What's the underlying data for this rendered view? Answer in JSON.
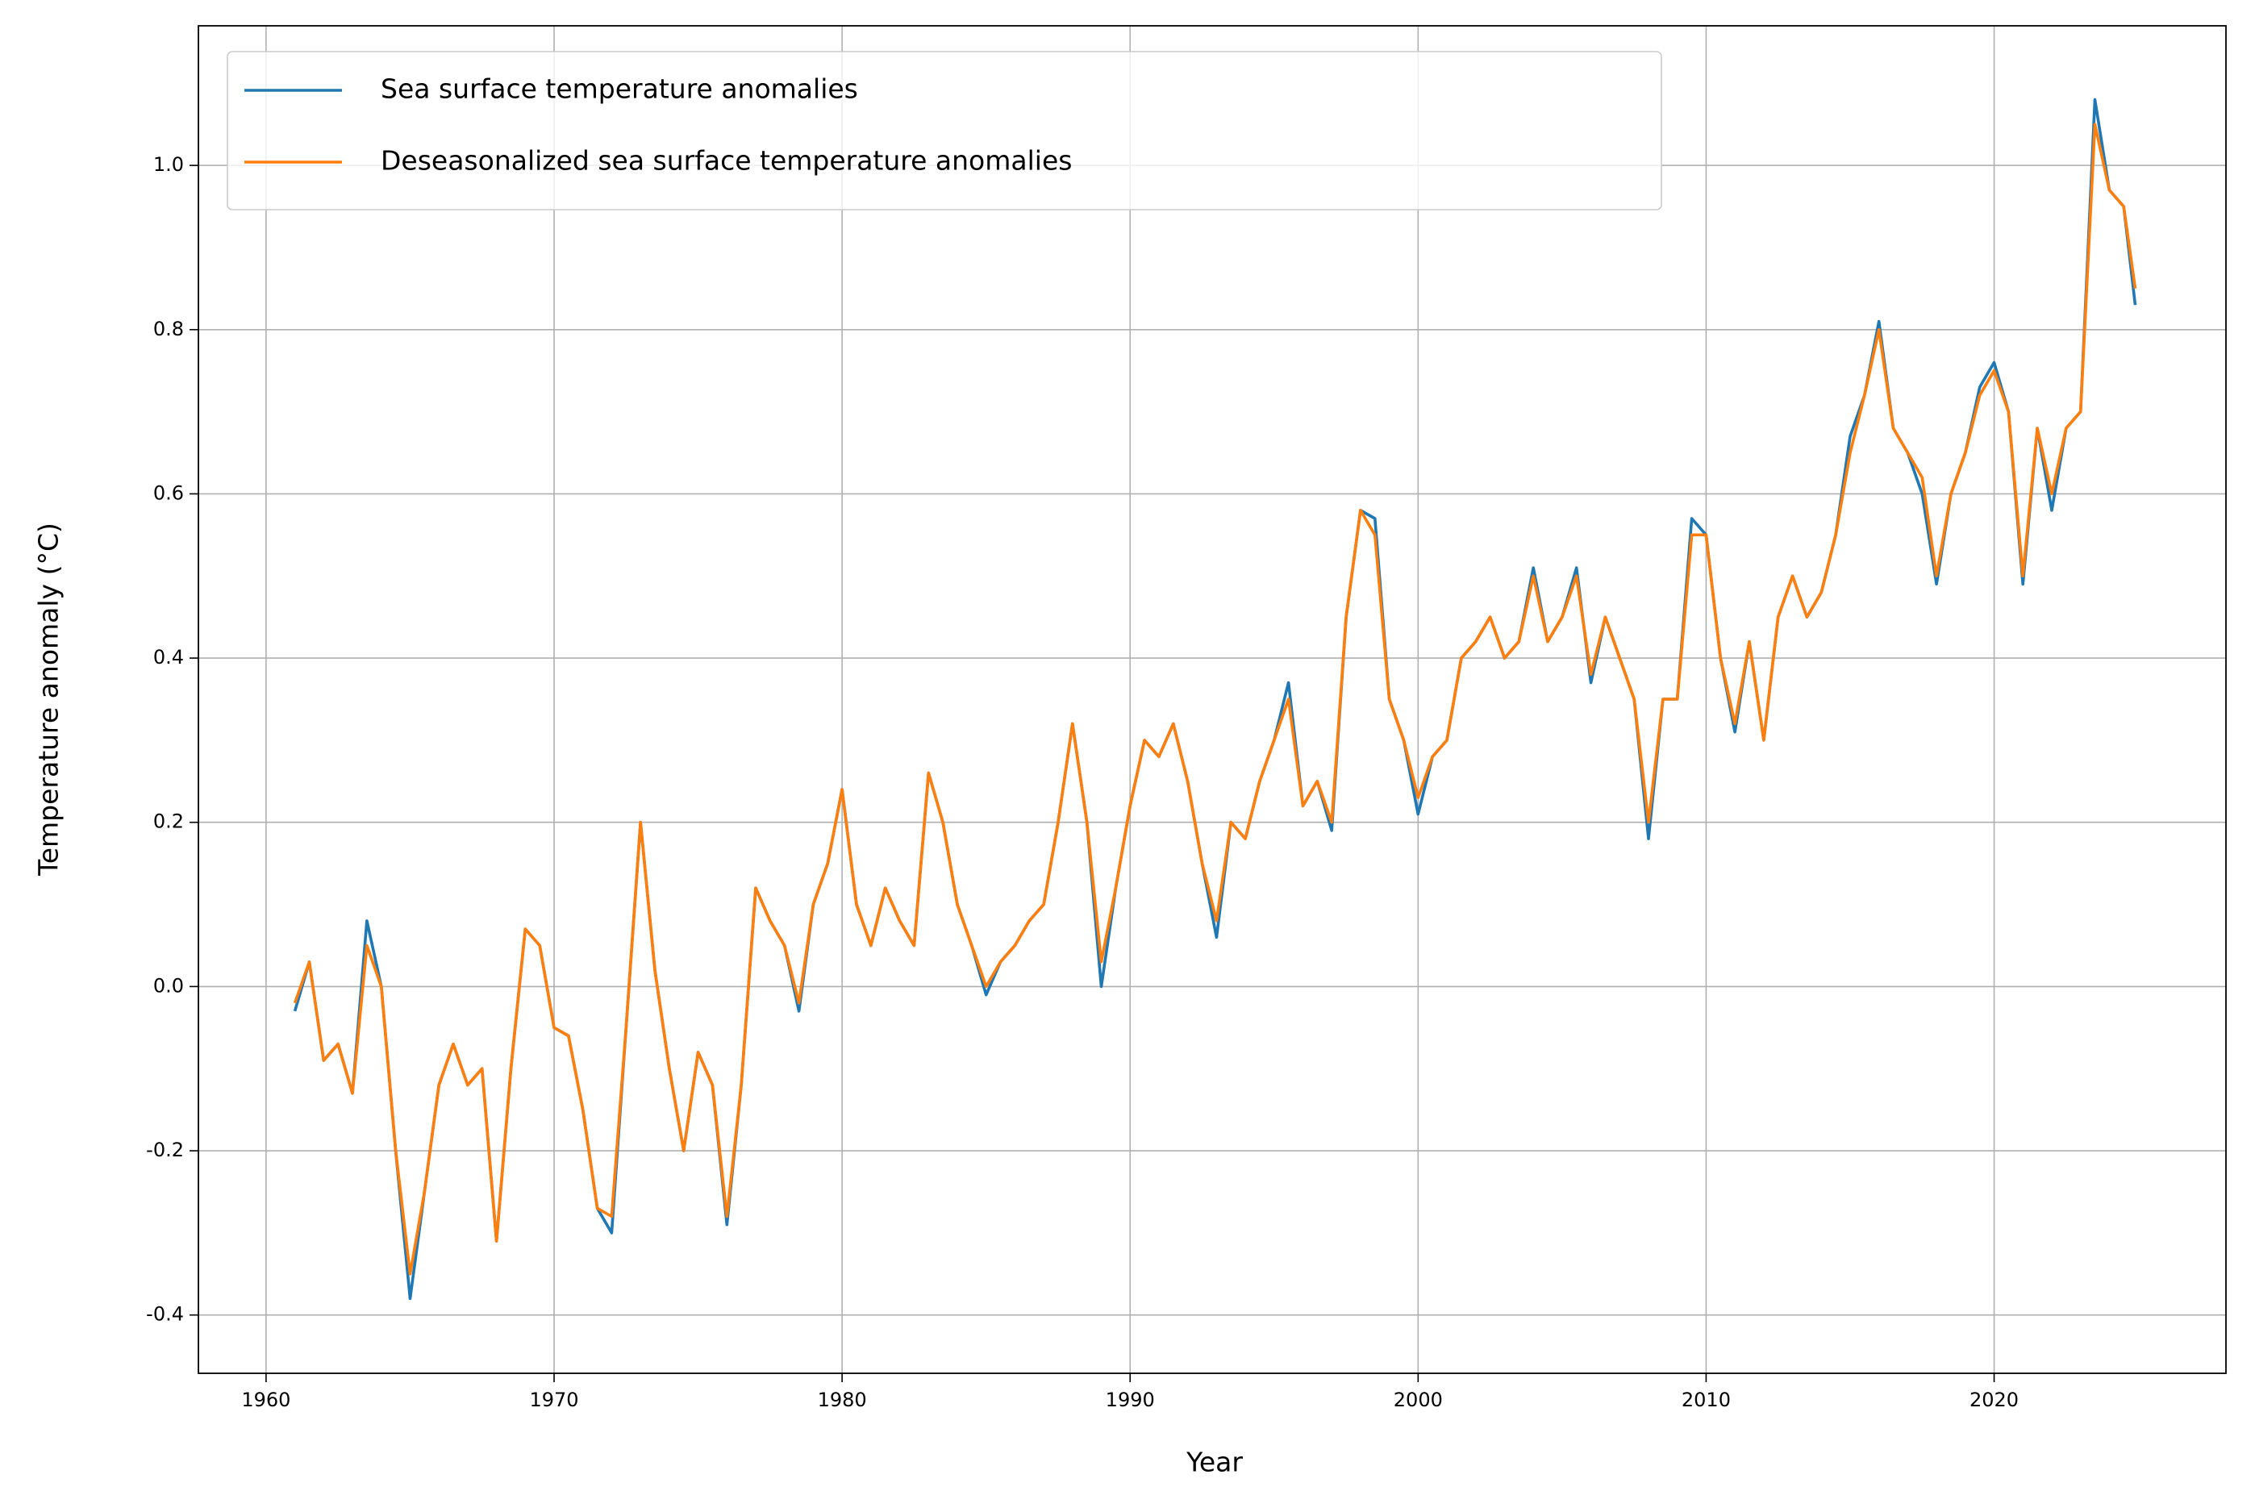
{
  "chart_data": {
    "type": "line",
    "xlabel": "Year",
    "ylabel": "Temperature anomaly (°C)",
    "x": [
      1961.0,
      1961.5,
      1962.0,
      1962.5,
      1963.0,
      1963.5,
      1964.0,
      1964.5,
      1965.0,
      1965.5,
      1966.0,
      1966.5,
      1967.0,
      1967.5,
      1968.0,
      1968.5,
      1969.0,
      1969.5,
      1970.0,
      1970.5,
      1971.0,
      1971.5,
      1972.0,
      1972.5,
      1973.0,
      1973.5,
      1974.0,
      1974.5,
      1975.0,
      1975.5,
      1976.0,
      1976.5,
      1977.0,
      1977.5,
      1978.0,
      1978.5,
      1979.0,
      1979.5,
      1980.0,
      1980.5,
      1981.0,
      1981.5,
      1982.0,
      1982.5,
      1983.0,
      1983.5,
      1984.0,
      1984.5,
      1985.0,
      1985.5,
      1986.0,
      1986.5,
      1987.0,
      1987.5,
      1988.0,
      1988.5,
      1989.0,
      1989.5,
      1990.0,
      1990.5,
      1991.0,
      1991.5,
      1992.0,
      1992.5,
      1993.0,
      1993.5,
      1994.0,
      1994.5,
      1995.0,
      1995.5,
      1996.0,
      1996.5,
      1997.0,
      1997.5,
      1998.0,
      1998.5,
      1999.0,
      1999.5,
      2000.0,
      2000.5,
      2001.0,
      2001.5,
      2002.0,
      2002.5,
      2003.0,
      2003.5,
      2004.0,
      2004.5,
      2005.0,
      2005.5,
      2006.0,
      2006.5,
      2007.0,
      2007.5,
      2008.0,
      2008.5,
      2009.0,
      2009.5,
      2010.0,
      2010.5,
      2011.0,
      2011.5,
      2012.0,
      2012.5,
      2013.0,
      2013.5,
      2014.0,
      2014.5,
      2015.0,
      2015.5,
      2016.0,
      2016.5,
      2017.0,
      2017.5,
      2018.0,
      2018.5,
      2019.0,
      2019.5,
      2020.0,
      2020.5,
      2021.0,
      2021.5,
      2022.0,
      2022.5,
      2023.0,
      2023.5,
      2024.0,
      2024.5,
      2024.9
    ],
    "series": [
      {
        "name": "Sea surface temperature anomalies",
        "color": "#1f77b4",
        "values": [
          -0.03,
          0.03,
          -0.09,
          -0.07,
          -0.13,
          0.08,
          0.0,
          -0.2,
          -0.38,
          -0.25,
          -0.12,
          -0.07,
          -0.12,
          -0.1,
          -0.31,
          -0.1,
          0.07,
          0.05,
          -0.05,
          -0.06,
          -0.15,
          -0.27,
          -0.3,
          -0.05,
          0.2,
          0.02,
          -0.1,
          -0.2,
          -0.08,
          -0.12,
          -0.29,
          -0.12,
          0.12,
          0.08,
          0.05,
          -0.03,
          0.1,
          0.15,
          0.24,
          0.1,
          0.05,
          0.12,
          0.08,
          0.05,
          0.26,
          0.2,
          0.1,
          0.05,
          -0.01,
          0.03,
          0.05,
          0.08,
          0.1,
          0.2,
          0.32,
          0.2,
          0.0,
          0.12,
          0.22,
          0.3,
          0.28,
          0.32,
          0.25,
          0.15,
          0.06,
          0.2,
          0.18,
          0.25,
          0.3,
          0.37,
          0.22,
          0.25,
          0.19,
          0.45,
          0.58,
          0.57,
          0.35,
          0.3,
          0.21,
          0.28,
          0.3,
          0.4,
          0.42,
          0.45,
          0.4,
          0.42,
          0.51,
          0.42,
          0.45,
          0.51,
          0.37,
          0.45,
          0.4,
          0.35,
          0.18,
          0.35,
          0.35,
          0.57,
          0.55,
          0.4,
          0.31,
          0.42,
          0.3,
          0.45,
          0.5,
          0.45,
          0.48,
          0.55,
          0.67,
          0.72,
          0.81,
          0.68,
          0.65,
          0.6,
          0.49,
          0.6,
          0.65,
          0.73,
          0.76,
          0.7,
          0.49,
          0.68,
          0.58,
          0.68,
          0.7,
          1.08,
          0.97,
          0.95,
          0.83
        ]
      },
      {
        "name": "Deseasonalized sea surface temperature anomalies",
        "color": "#ff7f0e",
        "values": [
          -0.02,
          0.03,
          -0.09,
          -0.07,
          -0.13,
          0.05,
          0.0,
          -0.2,
          -0.35,
          -0.25,
          -0.12,
          -0.07,
          -0.12,
          -0.1,
          -0.31,
          -0.1,
          0.07,
          0.05,
          -0.05,
          -0.06,
          -0.15,
          -0.27,
          -0.28,
          -0.05,
          0.2,
          0.02,
          -0.1,
          -0.2,
          -0.08,
          -0.12,
          -0.28,
          -0.12,
          0.12,
          0.08,
          0.05,
          -0.02,
          0.1,
          0.15,
          0.24,
          0.1,
          0.05,
          0.12,
          0.08,
          0.05,
          0.26,
          0.2,
          0.1,
          0.05,
          0.0,
          0.03,
          0.05,
          0.08,
          0.1,
          0.2,
          0.32,
          0.2,
          0.03,
          0.12,
          0.22,
          0.3,
          0.28,
          0.32,
          0.25,
          0.15,
          0.08,
          0.2,
          0.18,
          0.25,
          0.3,
          0.35,
          0.22,
          0.25,
          0.2,
          0.45,
          0.58,
          0.55,
          0.35,
          0.3,
          0.23,
          0.28,
          0.3,
          0.4,
          0.42,
          0.45,
          0.4,
          0.42,
          0.5,
          0.42,
          0.45,
          0.5,
          0.38,
          0.45,
          0.4,
          0.35,
          0.2,
          0.35,
          0.35,
          0.55,
          0.55,
          0.4,
          0.32,
          0.42,
          0.3,
          0.45,
          0.5,
          0.45,
          0.48,
          0.55,
          0.65,
          0.72,
          0.8,
          0.68,
          0.65,
          0.62,
          0.5,
          0.6,
          0.65,
          0.72,
          0.75,
          0.7,
          0.5,
          0.68,
          0.6,
          0.68,
          0.7,
          1.05,
          0.97,
          0.95,
          0.85
        ]
      }
    ],
    "xlim": [
      1957.65,
      2028.05
    ],
    "xticks": [
      1960,
      1970,
      1980,
      1990,
      2000,
      2010,
      2020
    ],
    "ylim": [
      -0.471,
      1.17
    ],
    "yticks": [
      -0.4,
      -0.2,
      {
        "value": 0,
        "label": "0.0"
      },
      0.2,
      0.4,
      0.6,
      0.8,
      {
        "value": 1,
        "label": "1.0"
      }
    ],
    "grid": true,
    "legend": "upper left"
  }
}
